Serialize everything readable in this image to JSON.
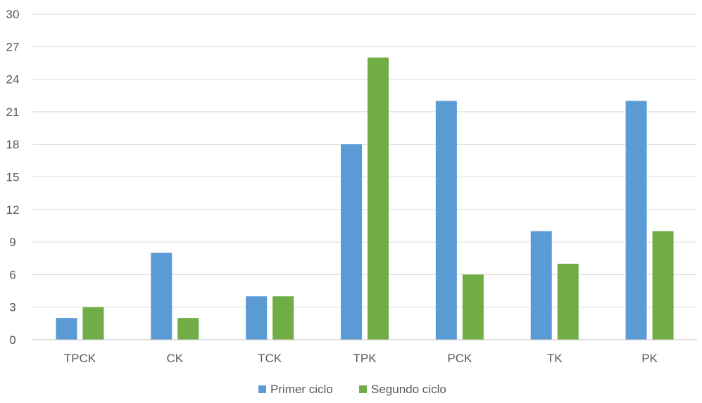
{
  "chart_data": {
    "type": "bar",
    "categories": [
      "TPCK",
      "CK",
      "TCK",
      "TPK",
      "PCK",
      "TK",
      "PK"
    ],
    "series": [
      {
        "name": "Primer ciclo",
        "color": "#5b9bd5",
        "values": [
          2,
          8,
          4,
          18,
          22,
          10,
          22
        ]
      },
      {
        "name": "Segundo ciclo",
        "color": "#70ad47",
        "values": [
          3,
          2,
          4,
          26,
          6,
          7,
          10
        ]
      }
    ],
    "ylim": [
      0,
      30
    ],
    "yticks": [
      0,
      3,
      6,
      9,
      12,
      15,
      18,
      21,
      24,
      27,
      30
    ],
    "grid": true,
    "legend_position": "bottom"
  }
}
